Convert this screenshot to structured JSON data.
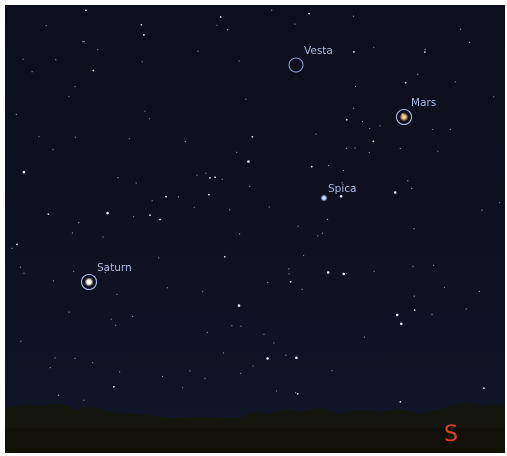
{
  "sky_objects": [
    {
      "label": "Vesta"
    },
    {
      "label": "Mars"
    },
    {
      "label": "Spica"
    },
    {
      "label": "Saturn"
    }
  ],
  "compass": {
    "south": "S"
  }
}
